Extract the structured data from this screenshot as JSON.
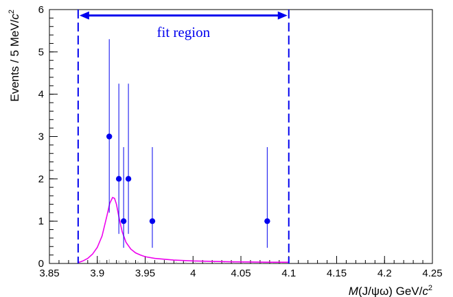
{
  "chart_data": {
    "type": "scatter",
    "title": "",
    "xlabel": {
      "prefix": "M",
      "middle": "(J/ψω) GeV/",
      "unit_var": "c",
      "unit_exp": "2"
    },
    "ylabel": {
      "prefix": "Events / 5 MeV/",
      "unit_var": "c",
      "unit_exp": "2"
    },
    "xlim": [
      3.85,
      4.25
    ],
    "ylim": [
      0,
      6
    ],
    "x_ticks": [
      {
        "value": 3.85,
        "label": "3.85"
      },
      {
        "value": 3.9,
        "label": "3.9"
      },
      {
        "value": 3.95,
        "label": "3.95"
      },
      {
        "value": 4.0,
        "label": "4"
      },
      {
        "value": 4.05,
        "label": "4.05"
      },
      {
        "value": 4.1,
        "label": "4.1"
      },
      {
        "value": 4.15,
        "label": "4.15"
      },
      {
        "value": 4.2,
        "label": "4.2"
      },
      {
        "value": 4.25,
        "label": "4.25"
      }
    ],
    "y_ticks": [
      {
        "value": 0,
        "label": "0"
      },
      {
        "value": 1,
        "label": "1"
      },
      {
        "value": 2,
        "label": "2"
      },
      {
        "value": 3,
        "label": "3"
      },
      {
        "value": 4,
        "label": "4"
      },
      {
        "value": 5,
        "label": "5"
      },
      {
        "value": 6,
        "label": "6"
      }
    ],
    "series": [
      {
        "kind": "points-with-errors",
        "color": "#0000ee",
        "points": [
          {
            "x": 3.9125,
            "y": 3,
            "ylow": 1.2,
            "yhigh": 5.3
          },
          {
            "x": 3.9225,
            "y": 2,
            "ylow": 0.7,
            "yhigh": 4.25
          },
          {
            "x": 3.9275,
            "y": 1,
            "ylow": 0.37,
            "yhigh": 2.75
          },
          {
            "x": 3.9325,
            "y": 2,
            "ylow": 0.7,
            "yhigh": 4.25
          },
          {
            "x": 3.9575,
            "y": 1,
            "ylow": 0.37,
            "yhigh": 2.75
          },
          {
            "x": 4.0775,
            "y": 1,
            "ylow": 0.37,
            "yhigh": 2.75
          }
        ]
      },
      {
        "kind": "fit-curve",
        "color": "#ee00ee",
        "x": [
          3.88,
          3.885,
          3.89,
          3.895,
          3.9,
          3.905,
          3.91,
          3.913,
          3.916,
          3.918,
          3.92,
          3.923,
          3.926,
          3.93,
          3.935,
          3.94,
          3.945,
          3.95,
          3.96,
          3.97,
          3.98,
          3.99,
          4.0,
          4.02,
          4.04,
          4.06,
          4.08,
          4.1
        ],
        "y": [
          0.02,
          0.06,
          0.12,
          0.22,
          0.38,
          0.65,
          1.12,
          1.42,
          1.56,
          1.54,
          1.4,
          1.05,
          0.75,
          0.5,
          0.34,
          0.25,
          0.2,
          0.16,
          0.12,
          0.1,
          0.08,
          0.07,
          0.06,
          0.05,
          0.04,
          0.035,
          0.03,
          0.03
        ]
      },
      {
        "kind": "background-ticks",
        "color": "#aaaaaa",
        "x": [
          3.9025,
          3.9125,
          3.9225,
          3.9325,
          3.9425,
          3.9525,
          3.9625,
          3.9725,
          3.9825,
          3.9925,
          4.0025,
          4.0125,
          4.0225,
          4.0325,
          4.0425,
          4.0525,
          4.0625,
          4.0725,
          4.0825,
          4.0925
        ],
        "y": [
          0.08,
          0.1,
          0.07,
          0.06,
          0.05,
          0.05,
          0.04,
          0.04,
          0.04,
          0.03,
          0.03,
          0.03,
          0.03,
          0.03,
          0.03,
          0.03,
          0.03,
          0.03,
          0.03,
          0.03
        ]
      }
    ],
    "fit_region": {
      "xmin": 3.88,
      "xmax": 4.1,
      "arrow_y": 5.86,
      "label": "fit region",
      "label_y": 5.45,
      "color": "#0000ee"
    }
  }
}
